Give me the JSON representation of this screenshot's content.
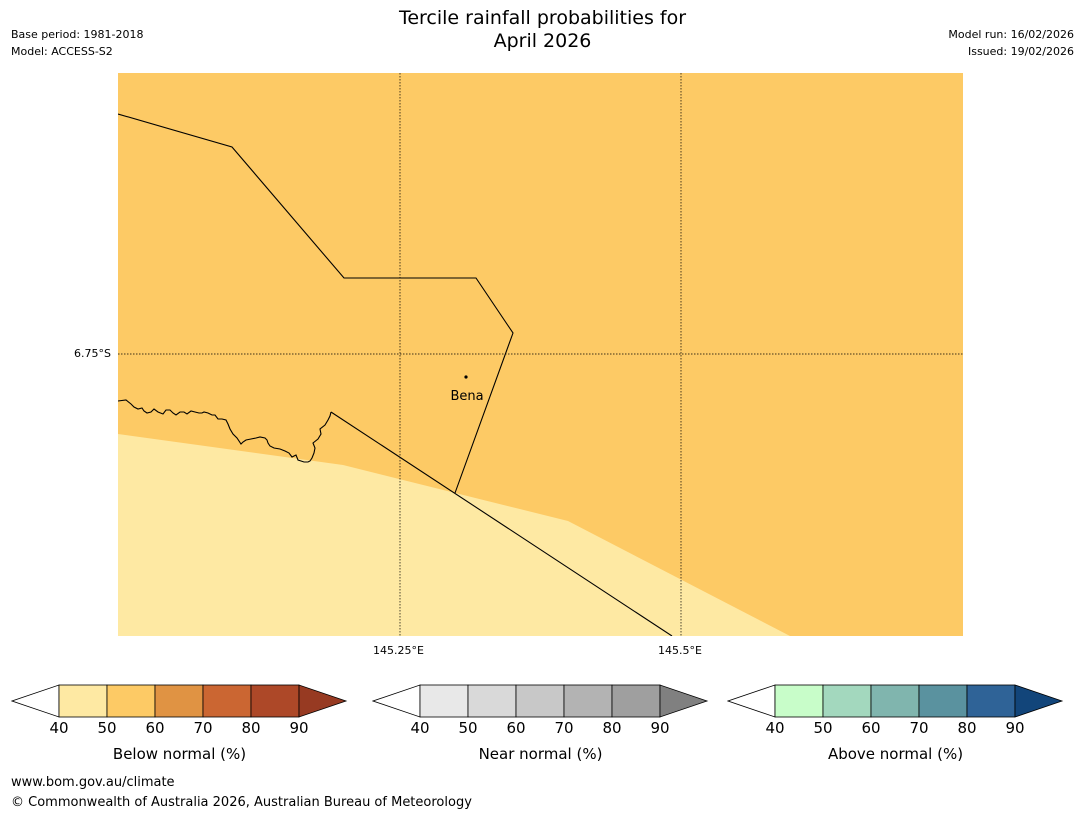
{
  "header": {
    "title_line1": "Tercile rainfall probabilities for",
    "title_line2": "April 2026",
    "base_period": "Base period: 1981-2018",
    "model": "Model: ACCESS-S2",
    "model_run": "Model run: 16/02/2026",
    "issued": "Issued: 19/02/2026"
  },
  "map": {
    "place_label": "Bena",
    "lat_tick": "6.75°S",
    "lon_ticks": [
      "145.25°E",
      "145.5°E"
    ],
    "colors": {
      "below_50_60": "#fdca65",
      "below_40_50": "#fee9a3",
      "boundary": "#000000"
    }
  },
  "legends": [
    {
      "label": "Below normal (%)",
      "ticks": [
        "40",
        "50",
        "60",
        "70",
        "80",
        "90"
      ],
      "colors": [
        "#ffffff",
        "#fee9a3",
        "#fdca65",
        "#e09343",
        "#cb6632",
        "#ad4828",
        "#973a22"
      ]
    },
    {
      "label": "Near normal (%)",
      "ticks": [
        "40",
        "50",
        "60",
        "70",
        "80",
        "90"
      ],
      "colors": [
        "#ffffff",
        "#e8e8e8",
        "#d9d9d9",
        "#c8c8c8",
        "#b3b3b3",
        "#9f9f9f",
        "#808080"
      ]
    },
    {
      "label": "Above normal (%)",
      "ticks": [
        "40",
        "50",
        "60",
        "70",
        "80",
        "90"
      ],
      "colors": [
        "#ffffff",
        "#c8fdc9",
        "#a3d8be",
        "#80b5ae",
        "#5a929f",
        "#2f6397",
        "#12457a"
      ]
    }
  ],
  "footer": {
    "url": "www.bom.gov.au/climate",
    "copyright": "© Commonwealth of Australia 2026, Australian Bureau of Meteorology"
  }
}
